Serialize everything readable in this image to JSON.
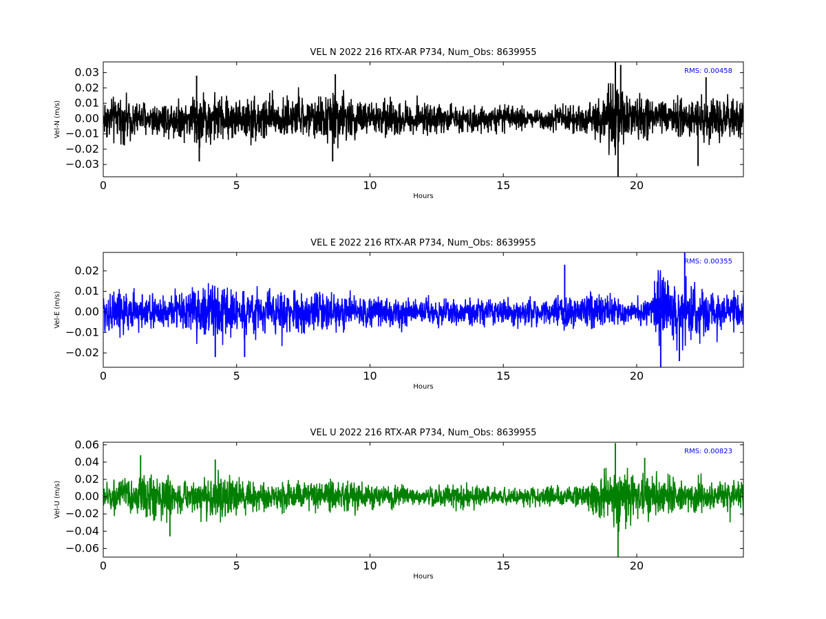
{
  "chart_data": [
    {
      "type": "line",
      "title": "VEL N 2022 216 RTX-AR  P734, Num_Obs: 8639955",
      "xlabel": "Hours",
      "ylabel": "Vel-N (m/s)",
      "xlim": [
        0,
        24
      ],
      "ylim": [
        -0.038,
        0.037
      ],
      "xticks": [
        "0",
        "5",
        "10",
        "15",
        "20"
      ],
      "yticks": [
        "0.03",
        "0.02",
        "0.01",
        "0.00",
        "−0.01",
        "−0.02",
        "−0.03"
      ],
      "ytick_values": [
        0.03,
        0.02,
        0.01,
        0.0,
        -0.01,
        -0.02,
        -0.03
      ],
      "annotation": "RMS:  0.00458",
      "grid": false,
      "series_color": "#000000",
      "annotation_color": "#0000ff",
      "envelope_hours": [
        0,
        1,
        2,
        3,
        3.5,
        4,
        5,
        6,
        7,
        8,
        8.7,
        9.5,
        10,
        11,
        12,
        13,
        14,
        15,
        16,
        17,
        18,
        18.7,
        19.3,
        20,
        20.6,
        21,
        22,
        22.6,
        23,
        24
      ],
      "envelope_amplitude": [
        0.018,
        0.016,
        0.014,
        0.016,
        0.022,
        0.02,
        0.016,
        0.02,
        0.016,
        0.016,
        0.024,
        0.015,
        0.016,
        0.014,
        0.012,
        0.011,
        0.011,
        0.01,
        0.009,
        0.01,
        0.012,
        0.02,
        0.028,
        0.018,
        0.018,
        0.015,
        0.016,
        0.02,
        0.016,
        0.016
      ],
      "peaks": [
        [
          19.2,
          0.037
        ],
        [
          19.3,
          -0.038
        ],
        [
          19.4,
          0.035
        ],
        [
          8.7,
          0.029
        ],
        [
          3.5,
          0.028
        ],
        [
          22.6,
          0.027
        ],
        [
          8.6,
          -0.028
        ],
        [
          3.6,
          -0.028
        ],
        [
          22.3,
          -0.031
        ]
      ]
    },
    {
      "type": "line",
      "title": "VEL E 2022 216 RTX-AR  P734, Num_Obs: 8639955",
      "xlabel": "Hours",
      "ylabel": "Vel-E (m/s)",
      "xlim": [
        0,
        24
      ],
      "ylim": [
        -0.027,
        0.029
      ],
      "xticks": [
        "0",
        "5",
        "10",
        "15",
        "20"
      ],
      "yticks": [
        "0.02",
        "0.01",
        "0.00",
        "−0.01",
        "−0.02"
      ],
      "ytick_values": [
        0.02,
        0.01,
        0.0,
        -0.01,
        -0.02
      ],
      "annotation": "RMS:  0.00355",
      "grid": false,
      "series_color": "#0000ff",
      "annotation_color": "#0000ff",
      "envelope_hours": [
        0,
        1,
        2,
        2.8,
        3.5,
        4.5,
        5.5,
        6.5,
        7.5,
        8.5,
        9.5,
        10.5,
        12,
        13.5,
        15,
        16.5,
        17.5,
        18.5,
        19.5,
        20.5,
        20.7,
        21,
        22,
        22.5,
        23,
        24
      ],
      "envelope_amplitude": [
        0.014,
        0.013,
        0.01,
        0.012,
        0.016,
        0.015,
        0.014,
        0.012,
        0.012,
        0.012,
        0.01,
        0.009,
        0.008,
        0.008,
        0.008,
        0.009,
        0.011,
        0.011,
        0.007,
        0.007,
        0.02,
        0.021,
        0.017,
        0.018,
        0.011,
        0.011
      ],
      "peaks": [
        [
          21.8,
          0.029
        ],
        [
          20.9,
          -0.027
        ],
        [
          17.3,
          0.023
        ],
        [
          4.2,
          -0.022
        ],
        [
          5.3,
          -0.022
        ],
        [
          21.6,
          -0.024
        ]
      ]
    },
    {
      "type": "line",
      "title": "VEL U 2022 216 RTX-AR  P734, Num_Obs: 8639955",
      "xlabel": "Hours",
      "ylabel": "Vel-U (m/s)",
      "xlim": [
        0,
        24
      ],
      "ylim": [
        -0.07,
        0.063
      ],
      "xticks": [
        "0",
        "5",
        "10",
        "15",
        "20"
      ],
      "yticks": [
        "0.06",
        "0.04",
        "0.02",
        "0.00",
        "−0.02",
        "−0.04",
        "−0.06"
      ],
      "ytick_values": [
        0.06,
        0.04,
        0.02,
        0.0,
        -0.02,
        -0.04,
        -0.06
      ],
      "annotation": "RMS:  0.00823",
      "grid": false,
      "series_color": "#008000",
      "annotation_color": "#0000ff",
      "envelope_hours": [
        0,
        1,
        1.8,
        2.5,
        3.2,
        4.2,
        5.2,
        6.2,
        7.5,
        9,
        10.5,
        12,
        13.5,
        14.8,
        16,
        17.5,
        18.2,
        19.2,
        19.8,
        20.5,
        21.2,
        22.5,
        23.2,
        24
      ],
      "envelope_amplitude": [
        0.022,
        0.024,
        0.036,
        0.03,
        0.02,
        0.032,
        0.024,
        0.02,
        0.022,
        0.022,
        0.018,
        0.014,
        0.02,
        0.012,
        0.014,
        0.016,
        0.022,
        0.045,
        0.03,
        0.034,
        0.028,
        0.022,
        0.022,
        0.022
      ],
      "peaks": [
        [
          19.2,
          0.062
        ],
        [
          19.3,
          -0.07
        ],
        [
          1.4,
          0.048
        ],
        [
          2.5,
          -0.046
        ],
        [
          4.2,
          0.043
        ],
        [
          20.3,
          0.045
        ]
      ]
    }
  ]
}
